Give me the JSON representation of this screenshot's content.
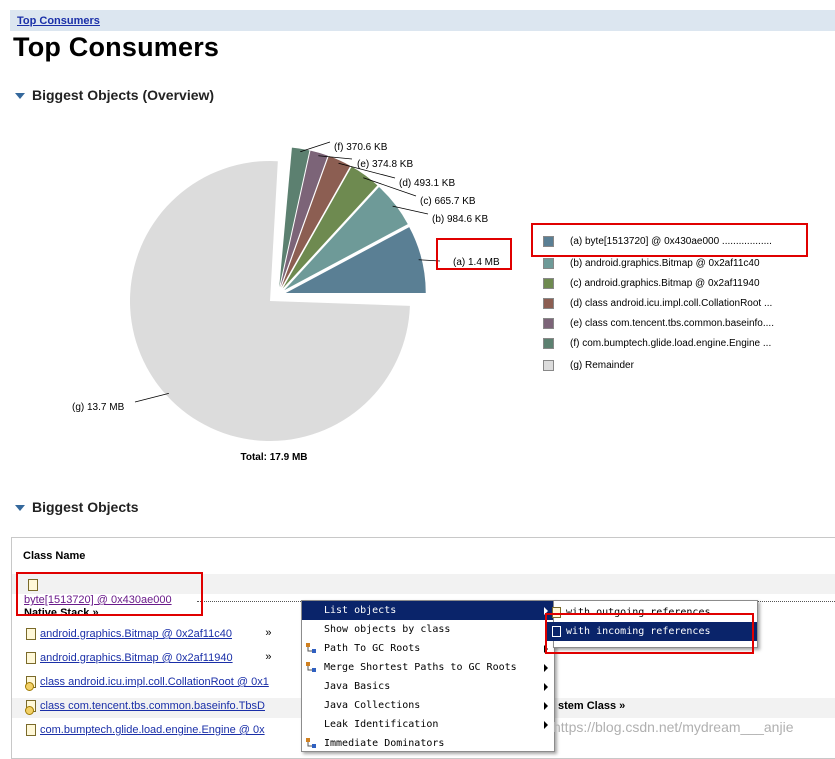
{
  "breadcrumb": "Top Consumers",
  "page_title": "Top Consumers",
  "sections": {
    "overview": "Biggest Objects (Overview)",
    "objects": "Biggest Objects"
  },
  "chart_data": {
    "type": "pie",
    "total_label": "Total: 17.9 MB",
    "slices": [
      {
        "key": "(a)",
        "size_label": "1.4 MB",
        "value": 1.4,
        "legend": "byte[1513720] @ 0x430ae000  ..................",
        "color": "#5a7f94"
      },
      {
        "key": "(b)",
        "size_label": "984.6 KB",
        "value": 0.9615,
        "legend": "android.graphics.Bitmap @ 0x2af11c40",
        "color": "#6e9a98"
      },
      {
        "key": "(c)",
        "size_label": "665.7 KB",
        "value": 0.6501,
        "legend": "android.graphics.Bitmap @ 0x2af11940",
        "color": "#6e8a50"
      },
      {
        "key": "(d)",
        "size_label": "493.1 KB",
        "value": 0.4815,
        "legend": "class android.icu.impl.coll.CollationRoot ...",
        "color": "#8c5e52"
      },
      {
        "key": "(e)",
        "size_label": "374.8 KB",
        "value": 0.366,
        "legend": "class com.tencent.tbs.common.baseinfo....",
        "color": "#7c6478"
      },
      {
        "key": "(f)",
        "size_label": "370.6 KB",
        "value": 0.3619,
        "legend": "com.bumptech.glide.load.engine.Engine ...",
        "color": "#5c8070"
      },
      {
        "key": "(g)",
        "size_label": "13.7 MB",
        "value": 13.7,
        "legend": "Remainder",
        "color": "#dcdcdc"
      }
    ]
  },
  "table": {
    "header": "Class Name",
    "rows": [
      {
        "label": "byte[1513720] @ 0x430ae000",
        "icon": "file-icon"
      },
      {
        "label": "android.graphics.Bitmap @ 0x2af11c40",
        "icon": "file-icon"
      },
      {
        "label": "android.graphics.Bitmap @ 0x2af11940",
        "icon": "file-icon"
      },
      {
        "label": "class android.icu.impl.coll.CollationRoot @ 0x1",
        "icon": "class-icon"
      },
      {
        "label": "class com.tencent.tbs.common.baseinfo.TbsD",
        "icon": "class-icon"
      },
      {
        "label": "com.bumptech.glide.load.engine.Engine @ 0x",
        "icon": "file-icon"
      }
    ],
    "native_stack": "Native Stack",
    "system_class": "stem Class"
  },
  "context_menu": {
    "items": [
      {
        "label": "List objects",
        "submenu": true,
        "selected": true
      },
      {
        "label": "Show objects by class",
        "submenu": false
      },
      {
        "label": "Path To GC Roots",
        "submenu": true
      },
      {
        "label": "Merge Shortest Paths to GC Roots",
        "submenu": true
      },
      {
        "label": "Java Basics",
        "submenu": true
      },
      {
        "label": "Java Collections",
        "submenu": true
      },
      {
        "label": "Leak Identification",
        "submenu": true
      },
      {
        "label": "Immediate Dominators",
        "submenu": false
      }
    ],
    "submenu": [
      {
        "label": "with outgoing references"
      },
      {
        "label": "with incoming references",
        "selected": true
      }
    ]
  },
  "watermark": "https://blog.csdn.net/mydream___anjie"
}
